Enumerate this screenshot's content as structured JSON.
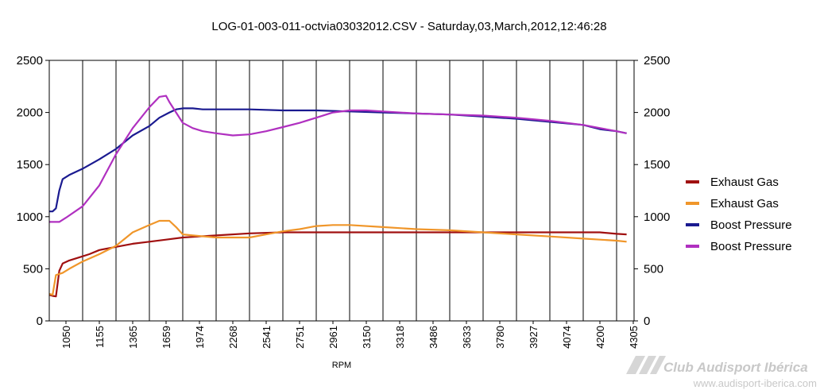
{
  "chart_data": {
    "type": "line",
    "title": "LOG-01-003-011-octvia03032012.CSV - Saturday,03,March,2012,12:46:28",
    "xlabel": "RPM",
    "ylabel": "",
    "ylim": [
      0,
      2500
    ],
    "y_ticks": [
      "0",
      "500",
      "1000",
      "1500",
      "2000",
      "2500"
    ],
    "y2_ticks": [
      "0",
      "500",
      "1000",
      "1500",
      "2000",
      "2500"
    ],
    "categories": [
      "1050",
      "1155",
      "1365",
      "1659",
      "1974",
      "2268",
      "2541",
      "2751",
      "2961",
      "3150",
      "3318",
      "3486",
      "3633",
      "3780",
      "3927",
      "4074",
      "4200",
      "4305"
    ],
    "grid": "vertical",
    "legend_position": "right",
    "series": [
      {
        "name": "Exhaust Gas",
        "color": "#a01010",
        "x": [
          0,
          0.1,
          0.2,
          0.3,
          0.4,
          0.6,
          0.8,
          1.0,
          1.2,
          1.5,
          2.0,
          2.5,
          3.0,
          3.5,
          4.0,
          4.5,
          5.0,
          6.0,
          7.0,
          8.0,
          9.0,
          10.0,
          11.0,
          12.0,
          13.0,
          14.0,
          15.0,
          16.0,
          16.5,
          17.0,
          17.3
        ],
        "values": [
          250,
          240,
          235,
          480,
          550,
          580,
          600,
          620,
          640,
          680,
          710,
          740,
          760,
          780,
          800,
          810,
          820,
          840,
          850,
          850,
          850,
          850,
          850,
          850,
          850,
          850,
          850,
          850,
          850,
          835,
          830
        ]
      },
      {
        "name": "Exhaust Gas",
        "color": "#f0962a",
        "x": [
          0,
          0.1,
          0.2,
          0.4,
          0.6,
          1.0,
          1.5,
          2.0,
          2.5,
          3.0,
          3.3,
          3.6,
          3.8,
          4.0,
          4.3,
          5.0,
          6.0,
          6.5,
          7.0,
          7.5,
          8.0,
          8.5,
          9.0,
          10.0,
          10.5,
          11.0,
          12.0,
          13.0,
          14.0,
          15.0,
          16.0,
          16.5,
          17.0,
          17.3
        ],
        "values": [
          260,
          250,
          440,
          460,
          500,
          570,
          640,
          720,
          850,
          920,
          960,
          960,
          900,
          830,
          820,
          800,
          800,
          830,
          860,
          880,
          910,
          920,
          920,
          900,
          890,
          880,
          870,
          850,
          830,
          810,
          790,
          780,
          770,
          760
        ]
      },
      {
        "name": "Boost Pressure",
        "color": "#1a1a90",
        "x": [
          0,
          0.1,
          0.2,
          0.3,
          0.4,
          0.6,
          1.0,
          1.5,
          2.0,
          2.5,
          3.0,
          3.3,
          3.6,
          3.8,
          4.0,
          4.3,
          4.6,
          5.0,
          6.0,
          7.0,
          8.0,
          9.0,
          10.0,
          11.0,
          12.0,
          13.0,
          14.0,
          15.0,
          16.0,
          16.5,
          17.0,
          17.3
        ],
        "values": [
          1050,
          1050,
          1080,
          1250,
          1360,
          1400,
          1460,
          1550,
          1650,
          1780,
          1870,
          1950,
          2000,
          2030,
          2040,
          2040,
          2030,
          2030,
          2030,
          2020,
          2020,
          2010,
          2000,
          1990,
          1980,
          1960,
          1940,
          1910,
          1880,
          1840,
          1820,
          1800
        ]
      },
      {
        "name": "Boost Pressure",
        "color": "#b030c0",
        "x": [
          0,
          0.1,
          0.3,
          0.5,
          1.0,
          1.5,
          2.0,
          2.5,
          3.0,
          3.3,
          3.5,
          3.6,
          3.8,
          4.0,
          4.3,
          4.6,
          5.0,
          5.5,
          6.0,
          6.5,
          7.0,
          7.5,
          8.0,
          8.5,
          9.0,
          9.5,
          10.0,
          11.0,
          12.0,
          13.0,
          14.0,
          15.0,
          16.0,
          17.0,
          17.3
        ],
        "values": [
          950,
          950,
          950,
          990,
          1100,
          1300,
          1600,
          1850,
          2050,
          2150,
          2160,
          2100,
          2000,
          1900,
          1850,
          1820,
          1800,
          1780,
          1790,
          1820,
          1860,
          1900,
          1950,
          2000,
          2020,
          2020,
          2010,
          1990,
          1980,
          1970,
          1950,
          1920,
          1880,
          1820,
          1800
        ]
      }
    ]
  },
  "watermark": {
    "brand": "Club Audisport Ibérica",
    "url": "www.audisport-iberica.com"
  }
}
